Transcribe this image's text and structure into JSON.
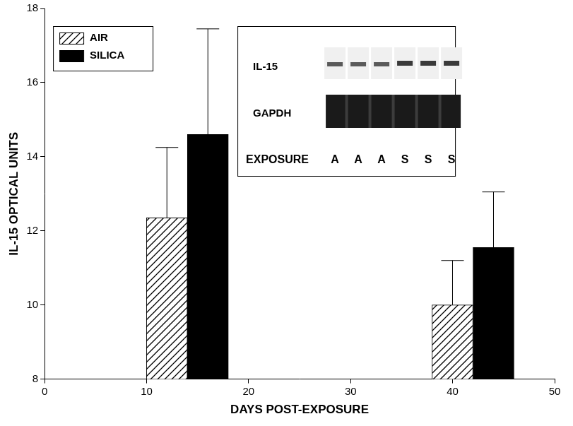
{
  "chart_data": {
    "type": "bar",
    "x": [
      14,
      42
    ],
    "series": [
      {
        "name": "AIR",
        "color": "#000000",
        "values": [
          12.35,
          10
        ],
        "errors": [
          1.9,
          1.2
        ]
      },
      {
        "name": "SILICA",
        "color": "#000000",
        "values": [
          14.6,
          11.55
        ],
        "errors": [
          2.85,
          1.5
        ]
      }
    ],
    "x_label": "DAYS POST-EXPOSURE",
    "y_label": "IL-15 OPTICAL UNITS",
    "xlim": [
      0,
      50
    ],
    "xticks": [
      0,
      10,
      20,
      30,
      40,
      50
    ],
    "ylim": [
      8,
      18
    ],
    "yticks": [
      8,
      10,
      12,
      14,
      16,
      18
    ],
    "grid": false,
    "legend": "upper left",
    "annotations": {
      "inset_rows": [
        "IL-15",
        "GAPDH"
      ],
      "inset_lane_title": "EXPOSURE",
      "inset_lanes": [
        "A",
        "A",
        "A",
        "S",
        "S",
        "S"
      ]
    }
  }
}
